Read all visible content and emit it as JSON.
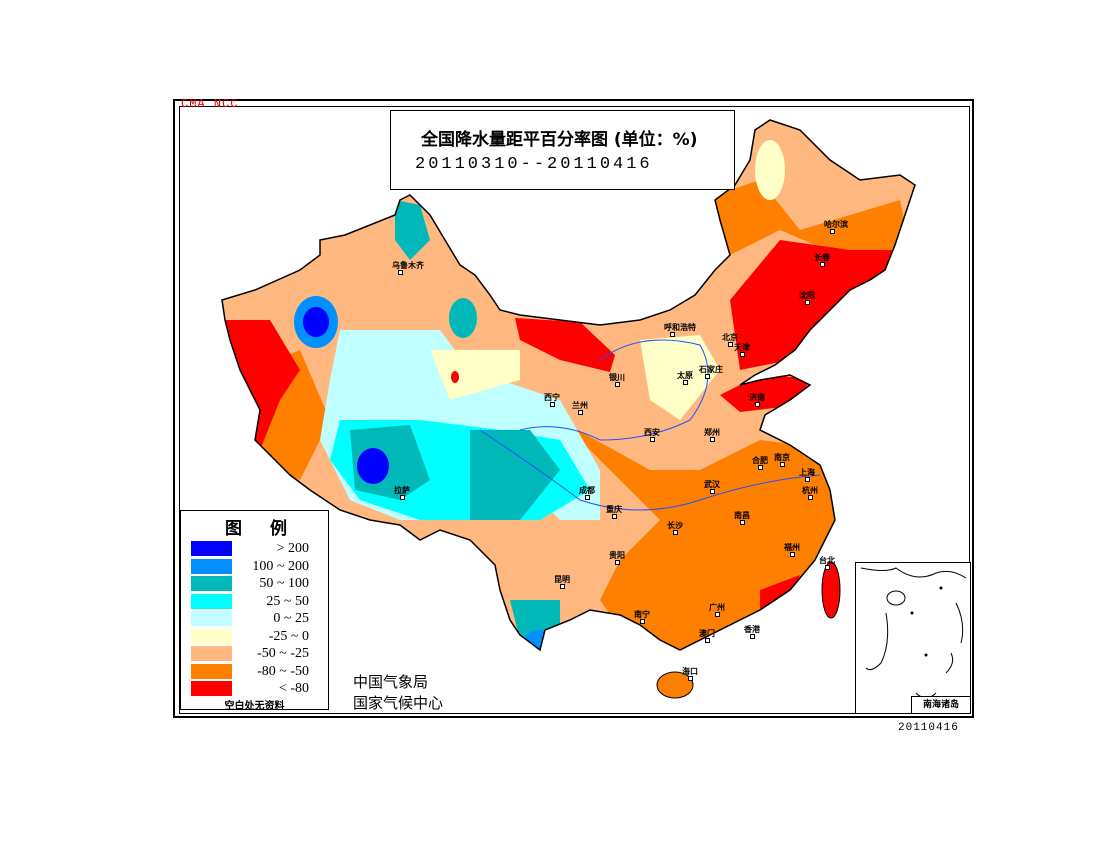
{
  "watermark": "CMA  NCC",
  "title": "全国降水量距平百分率图 (单位：%)",
  "date_range": "20110310--20110416",
  "legend": {
    "title": "图例",
    "items": [
      {
        "label": "> 200",
        "color": "#0000ff"
      },
      {
        "label": "100 ~ 200",
        "color": "#0090ff"
      },
      {
        "label": "50 ~ 100",
        "color": "#00b8b8"
      },
      {
        "label": "25 ~ 50",
        "color": "#00ffff"
      },
      {
        "label": "0 ~ 25",
        "color": "#c0ffff"
      },
      {
        "label": "-25 ~ 0",
        "color": "#ffffc8"
      },
      {
        "label": "-50 ~ -25",
        "color": "#ffb880"
      },
      {
        "label": "-80 ~ -50",
        "color": "#ff8000"
      },
      {
        "label": "< -80",
        "color": "#ff0000"
      }
    ],
    "note": "空白处无资料"
  },
  "agency": [
    "中国气象局",
    "国家气候中心"
  ],
  "cities": [
    "乌鲁木齐",
    "哈尔滨",
    "长春",
    "沈阳",
    "呼和浩特",
    "北京",
    "天津",
    "石家庄",
    "太原",
    "银川",
    "西宁",
    "兰州",
    "济南",
    "郑州",
    "西安",
    "拉萨",
    "成都",
    "重庆",
    "武汉",
    "合肥",
    "南京",
    "上海",
    "杭州",
    "长沙",
    "南昌",
    "福州",
    "台北",
    "贵阳",
    "昆明",
    "南宁",
    "广州",
    "香港",
    "澳门",
    "海口"
  ],
  "inset_label": "南海诸岛",
  "footer_date": "20110416"
}
